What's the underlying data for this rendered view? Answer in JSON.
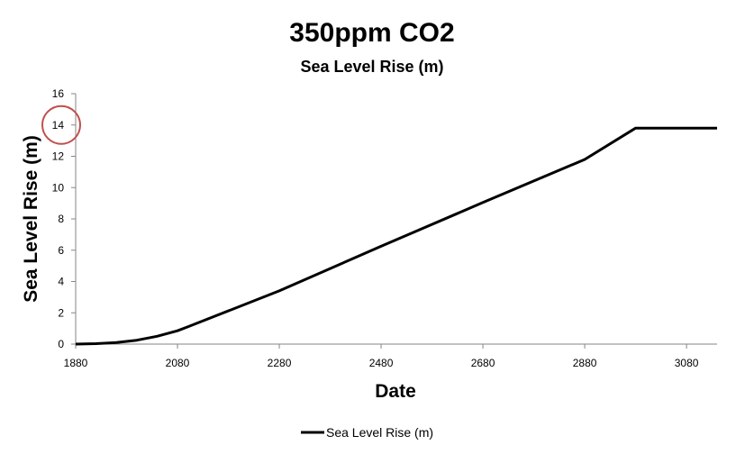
{
  "chart_data": {
    "type": "line",
    "title": "350ppm CO2",
    "subtitle": "Sea Level Rise (m)",
    "xlabel": "Date",
    "ylabel": "Sea Level Rise (m)",
    "xlim": [
      1880,
      3140
    ],
    "ylim": [
      0,
      16
    ],
    "x_ticks": [
      1880,
      2080,
      2280,
      2480,
      2680,
      2880,
      3080
    ],
    "y_ticks": [
      0,
      2,
      4,
      6,
      8,
      10,
      12,
      14,
      16
    ],
    "grid": false,
    "legend_position": "bottom",
    "highlighted_tick": 14,
    "highlight_color": "#c0504d",
    "line_color": "#000000",
    "series": [
      {
        "name": "Sea Level Rise (m)",
        "x": [
          1880,
          1920,
          1960,
          2000,
          2040,
          2080,
          2100,
          2280,
          2480,
          2680,
          2880,
          2980,
          3140
        ],
        "y": [
          0,
          0.03,
          0.1,
          0.25,
          0.5,
          0.85,
          1.1,
          3.4,
          6.25,
          9.05,
          11.8,
          13.8,
          13.8
        ]
      }
    ]
  }
}
